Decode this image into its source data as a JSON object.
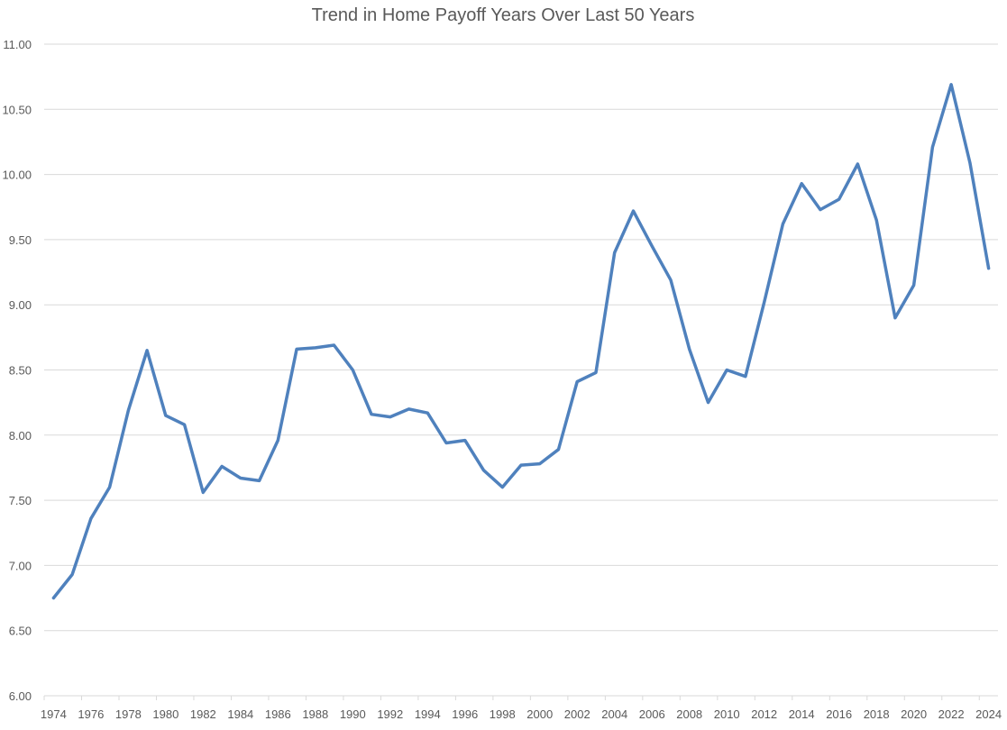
{
  "chart_data": {
    "type": "line",
    "title": "Trend in Home Payoff Years Over Last 50 Years",
    "xlabel": "",
    "ylabel": "",
    "ylim": [
      6.0,
      11.0
    ],
    "y_ticks": [
      "6.00",
      "6.50",
      "7.00",
      "7.50",
      "8.00",
      "8.50",
      "9.00",
      "9.50",
      "10.00",
      "10.50",
      "11.00"
    ],
    "x_tick_labels": [
      "1974",
      "1976",
      "1978",
      "1980",
      "1982",
      "1984",
      "1986",
      "1988",
      "1990",
      "1992",
      "1994",
      "1996",
      "1998",
      "2000",
      "2002",
      "2004",
      "2006",
      "2008",
      "2010",
      "2012",
      "2014",
      "2016",
      "2018",
      "2020",
      "2022",
      "2024"
    ],
    "grid": "horizontal",
    "legend": "none",
    "line_color": "#4f81bd",
    "x": [
      1974,
      1975,
      1976,
      1977,
      1978,
      1979,
      1980,
      1981,
      1982,
      1983,
      1984,
      1985,
      1986,
      1987,
      1988,
      1989,
      1990,
      1991,
      1992,
      1993,
      1994,
      1995,
      1996,
      1997,
      1998,
      1999,
      2000,
      2001,
      2002,
      2003,
      2004,
      2005,
      2006,
      2007,
      2008,
      2009,
      2010,
      2011,
      2012,
      2013,
      2014,
      2015,
      2016,
      2017,
      2018,
      2019,
      2020,
      2021,
      2022,
      2023,
      2024
    ],
    "values": [
      6.75,
      6.93,
      7.36,
      7.6,
      8.19,
      8.65,
      8.15,
      8.08,
      7.56,
      7.76,
      7.67,
      7.65,
      7.96,
      8.66,
      8.67,
      8.69,
      8.5,
      8.16,
      8.14,
      8.2,
      8.17,
      7.94,
      7.96,
      7.73,
      7.6,
      7.77,
      7.78,
      7.89,
      8.41,
      8.48,
      9.4,
      9.72,
      9.45,
      9.19,
      8.66,
      8.25,
      8.5,
      8.45,
      9.02,
      9.62,
      9.93,
      9.73,
      9.81,
      10.08,
      9.65,
      8.9,
      9.15,
      10.21,
      10.69,
      10.09,
      9.28
    ]
  }
}
